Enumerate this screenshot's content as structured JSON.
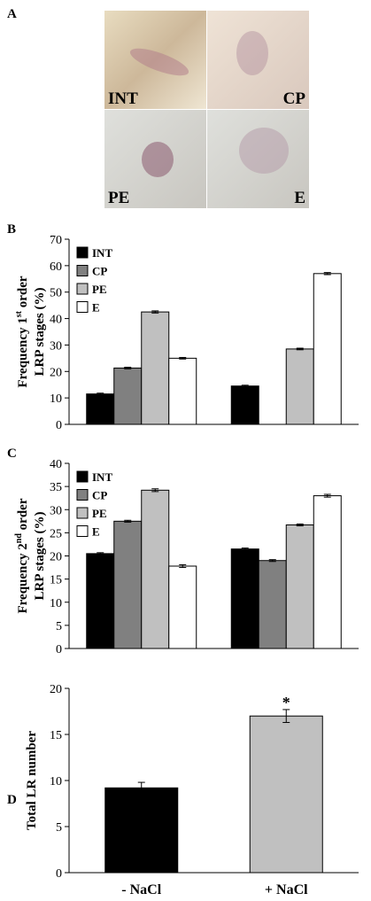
{
  "figure": {
    "panel_a": {
      "panel": "A",
      "labels": [
        "INT",
        "CP",
        "PE",
        "E"
      ]
    }
  },
  "chart_data": [
    {
      "type": "bar",
      "panel": "B",
      "ylabel_line1": "Frequency 1",
      "ylabel_sup": "st",
      "ylabel_line1_end": " order",
      "ylabel_line2": "LRP stages (%)",
      "ylim": [
        0,
        70
      ],
      "yticks": [
        0,
        10,
        20,
        30,
        40,
        50,
        60,
        70
      ],
      "legend": "upper left",
      "series": [
        {
          "name": "INT",
          "color": "#000000",
          "values": [
            11.5,
            14.5
          ],
          "errors": [
            0.3,
            0.3
          ]
        },
        {
          "name": "CP",
          "color": "#808080",
          "values": [
            21.3,
            null
          ],
          "errors": [
            0.3,
            null
          ]
        },
        {
          "name": "PE",
          "color": "#c0c0c0",
          "values": [
            42.5,
            28.5
          ],
          "errors": [
            0.4,
            0.3
          ]
        },
        {
          "name": "E",
          "color": "#ffffff",
          "values": [
            25,
            57
          ],
          "errors": [
            0.3,
            0.4
          ]
        }
      ]
    },
    {
      "type": "bar",
      "panel": "C",
      "ylabel_line1": "Frequency 2",
      "ylabel_sup": "nd",
      "ylabel_line1_end": " order",
      "ylabel_line2": "LRP stages (%)",
      "ylim": [
        0,
        40
      ],
      "yticks": [
        0,
        5,
        10,
        15,
        20,
        25,
        30,
        35,
        40
      ],
      "legend": "upper left",
      "series": [
        {
          "name": "INT",
          "color": "#000000",
          "values": [
            20.5,
            21.5
          ],
          "errors": [
            0.2,
            0.2
          ]
        },
        {
          "name": "CP",
          "color": "#808080",
          "values": [
            27.5,
            19
          ],
          "errors": [
            0.2,
            0.2
          ]
        },
        {
          "name": "PE",
          "color": "#c0c0c0",
          "values": [
            34.2,
            26.7
          ],
          "errors": [
            0.3,
            0.2
          ]
        },
        {
          "name": "E",
          "color": "#ffffff",
          "values": [
            17.8,
            33
          ],
          "errors": [
            0.3,
            0.3
          ]
        }
      ]
    },
    {
      "type": "bar",
      "panel": "D",
      "ylabel_line1": "Total LR number",
      "ylim": [
        0,
        20
      ],
      "yticks": [
        0,
        5,
        10,
        15,
        20
      ],
      "categories": [
        "- NaCl",
        "+ NaCl"
      ],
      "series": [
        {
          "colors": [
            "#000000",
            "#c0c0c0"
          ],
          "values": [
            9.2,
            17
          ],
          "errors": [
            0.6,
            0.7
          ]
        }
      ],
      "annotations": [
        {
          "text": "*",
          "index": 1
        }
      ]
    }
  ]
}
